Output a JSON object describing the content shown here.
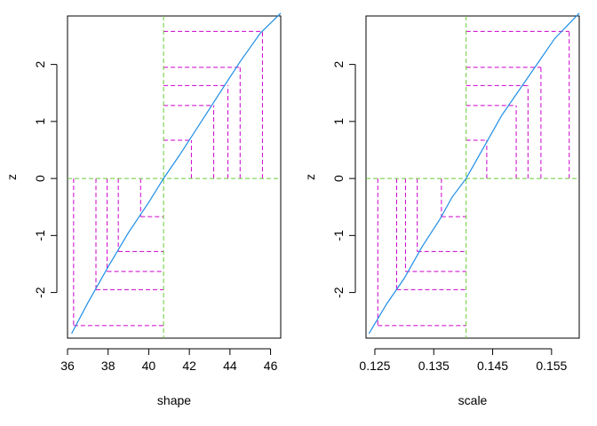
{
  "chart_data": [
    {
      "type": "line",
      "xlabel": "shape",
      "ylabel": "z",
      "xlim": [
        36,
        46.5
      ],
      "ylim": [
        -2.8,
        2.85
      ],
      "xticks": [
        36,
        38,
        40,
        42,
        44,
        46
      ],
      "xtick_labels": [
        "36",
        "38",
        "40",
        "42",
        "44",
        "46"
      ],
      "yticks": [
        -2,
        -1,
        0,
        1,
        2
      ],
      "ytick_labels": [
        "-2",
        "-1",
        "0",
        "1",
        "2"
      ],
      "curve": {
        "x": [
          36.2,
          37.0,
          38.0,
          39.0,
          40.0,
          40.73,
          41.5,
          42.5,
          43.5,
          44.5,
          45.5,
          46.5
        ],
        "y": [
          -2.72,
          -2.18,
          -1.55,
          -0.95,
          -0.42,
          0.0,
          0.4,
          0.95,
          1.5,
          2.05,
          2.55,
          2.9
        ]
      },
      "estimate": 40.73,
      "lower_steps": [
        {
          "x": 36.3,
          "z": -2.58
        },
        {
          "x": 37.4,
          "z": -1.95
        },
        {
          "x": 37.95,
          "z": -1.63
        },
        {
          "x": 38.5,
          "z": -1.28
        },
        {
          "x": 39.6,
          "z": -0.67
        }
      ],
      "upper_steps": [
        {
          "x": 42.1,
          "z": 0.67
        },
        {
          "x": 43.2,
          "z": 1.28
        },
        {
          "x": 43.9,
          "z": 1.63
        },
        {
          "x": 44.5,
          "z": 1.95
        },
        {
          "x": 45.6,
          "z": 2.58
        }
      ],
      "colors": {
        "curve": "#1f8ee6",
        "ci_lines": "#cc00cc",
        "reference_lines": "#66cc33"
      },
      "grid": false,
      "legend": "none"
    },
    {
      "type": "line",
      "xlabel": "scale",
      "ylabel": "z",
      "xlim": [
        0.1235,
        0.1597
      ],
      "ylim": [
        -2.8,
        2.85
      ],
      "xticks": [
        0.125,
        0.135,
        0.145,
        0.155
      ],
      "xtick_labels": [
        "0.125",
        "0.135",
        "0.145",
        "0.155"
      ],
      "yticks": [
        -2,
        -1,
        0,
        1,
        2
      ],
      "ytick_labels": [
        "-2",
        "-1",
        "0",
        "1",
        "2"
      ],
      "curve": {
        "x": [
          0.124,
          0.127,
          0.13,
          0.133,
          0.136,
          0.1381,
          0.1405,
          0.1435,
          0.1465,
          0.1495,
          0.1525,
          0.1555,
          0.1597
        ],
        "y": [
          -2.72,
          -2.2,
          -1.75,
          -1.2,
          -0.72,
          -0.33,
          0.0,
          0.55,
          1.1,
          1.55,
          2.0,
          2.45,
          2.9
        ]
      },
      "estimate": 0.1405,
      "lower_steps": [
        {
          "x": 0.1255,
          "z": -2.58
        },
        {
          "x": 0.1287,
          "z": -1.95
        },
        {
          "x": 0.1302,
          "z": -1.63
        },
        {
          "x": 0.1322,
          "z": -1.28
        },
        {
          "x": 0.1363,
          "z": -0.67
        }
      ],
      "upper_steps": [
        {
          "x": 0.144,
          "z": 0.67
        },
        {
          "x": 0.149,
          "z": 1.28
        },
        {
          "x": 0.151,
          "z": 1.63
        },
        {
          "x": 0.1532,
          "z": 1.95
        },
        {
          "x": 0.158,
          "z": 2.58
        }
      ],
      "colors": {
        "curve": "#1f8ee6",
        "ci_lines": "#cc00cc",
        "reference_lines": "#66cc33"
      },
      "grid": false,
      "legend": "none"
    }
  ]
}
